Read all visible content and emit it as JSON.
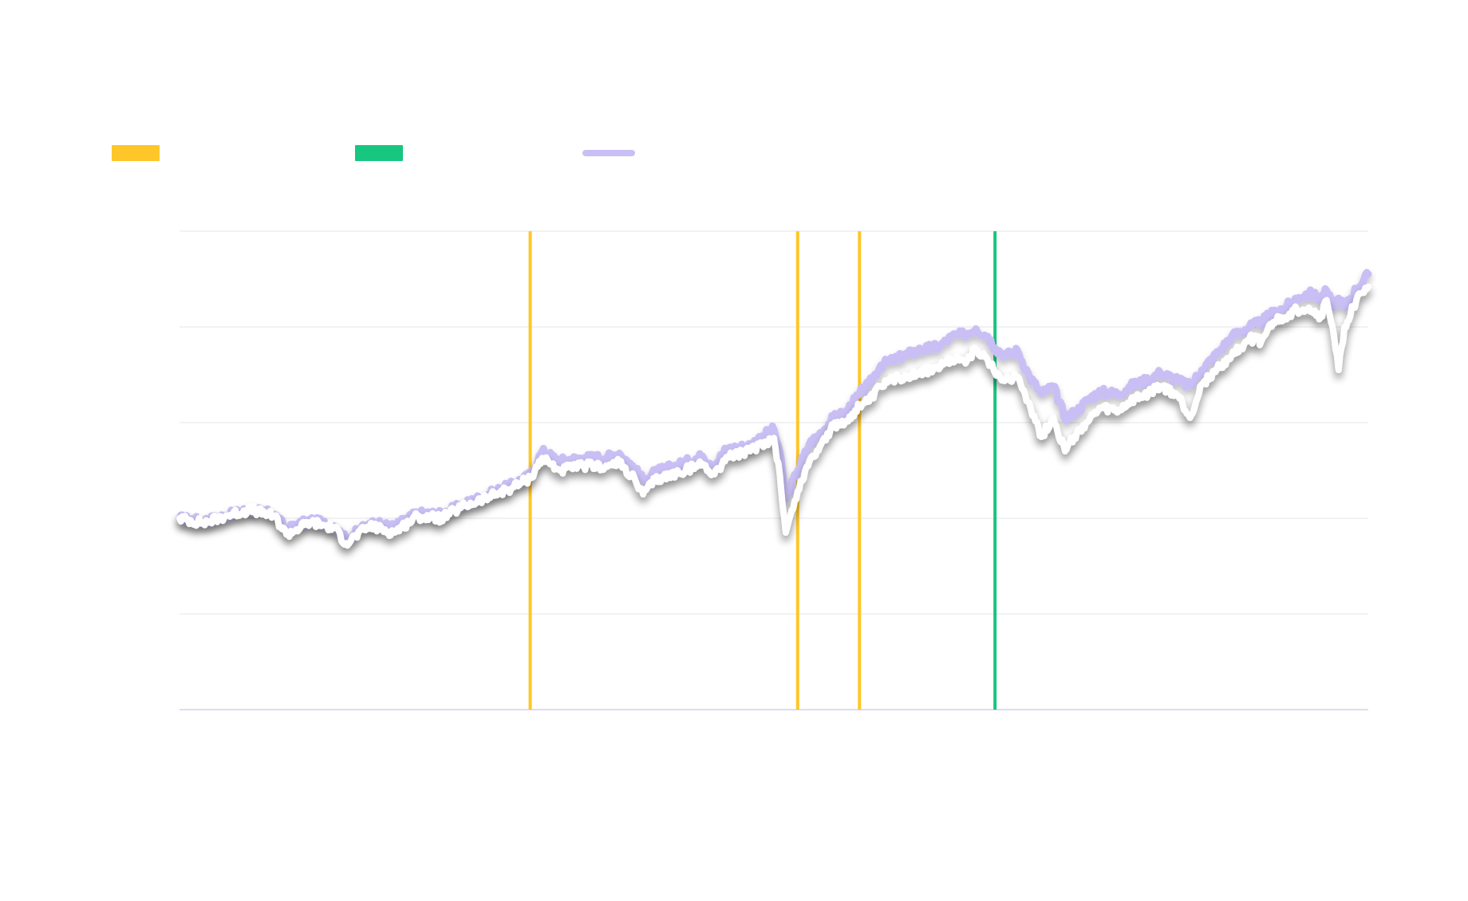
{
  "chart_data": {
    "type": "line",
    "title": "",
    "xlabel": "",
    "ylabel": "",
    "grid": true,
    "legend_position": "top-left",
    "legend": [
      {
        "key": "yellow",
        "label": "",
        "color": "#FFC629",
        "shape": "rect"
      },
      {
        "key": "green",
        "label": "",
        "color": "#17C67F",
        "shape": "rect"
      },
      {
        "key": "purple",
        "label": "",
        "color": "#C9BFF5",
        "shape": "line"
      }
    ],
    "x_range": [
      0,
      100
    ],
    "y_range": [
      0,
      5
    ],
    "gridlines_y": [
      0,
      1,
      2,
      3,
      4,
      5
    ],
    "vertical_markers": [
      {
        "x": 29.5,
        "color": "#FFC629"
      },
      {
        "x": 52.0,
        "color": "#FFC629"
      },
      {
        "x": 57.2,
        "color": "#FFC629"
      },
      {
        "x": 68.6,
        "color": "#17C67F"
      }
    ],
    "series": [
      {
        "color": "#C9BFF5",
        "points": [
          [
            0,
            2.0
          ],
          [
            2,
            1.97
          ],
          [
            4,
            2.03
          ],
          [
            6,
            2.09
          ],
          [
            8,
            2.04
          ],
          [
            9,
            1.88
          ],
          [
            11,
            1.98
          ],
          [
            13,
            1.92
          ],
          [
            14,
            1.78
          ],
          [
            16,
            1.95
          ],
          [
            18,
            1.91
          ],
          [
            20,
            2.05
          ],
          [
            22,
            2.04
          ],
          [
            24,
            2.15
          ],
          [
            26,
            2.25
          ],
          [
            28,
            2.35
          ],
          [
            29.5,
            2.45
          ],
          [
            30.5,
            2.7
          ],
          [
            32,
            2.6
          ],
          [
            34,
            2.63
          ],
          [
            36,
            2.64
          ],
          [
            37,
            2.68
          ],
          [
            38,
            2.56
          ],
          [
            39,
            2.4
          ],
          [
            40,
            2.48
          ],
          [
            42,
            2.56
          ],
          [
            44,
            2.65
          ],
          [
            45,
            2.56
          ],
          [
            46,
            2.72
          ],
          [
            48,
            2.76
          ],
          [
            49,
            2.86
          ],
          [
            50,
            2.93
          ],
          [
            50.5,
            2.7
          ],
          [
            51,
            2.2
          ],
          [
            52,
            2.5
          ],
          [
            53,
            2.78
          ],
          [
            54,
            2.9
          ],
          [
            55,
            3.05
          ],
          [
            56,
            3.1
          ],
          [
            57.2,
            3.3
          ],
          [
            58,
            3.4
          ],
          [
            59,
            3.6
          ],
          [
            60,
            3.65
          ],
          [
            62,
            3.75
          ],
          [
            64,
            3.8
          ],
          [
            65,
            3.9
          ],
          [
            66,
            3.92
          ],
          [
            67,
            3.98
          ],
          [
            68,
            3.9
          ],
          [
            68.6,
            3.78
          ],
          [
            69.5,
            3.7
          ],
          [
            70.5,
            3.75
          ],
          [
            71.5,
            3.48
          ],
          [
            72.5,
            3.3
          ],
          [
            73.5,
            3.38
          ],
          [
            74.5,
            3.05
          ],
          [
            75.5,
            3.12
          ],
          [
            76.5,
            3.25
          ],
          [
            77.5,
            3.32
          ],
          [
            79,
            3.3
          ],
          [
            80,
            3.38
          ],
          [
            81.5,
            3.45
          ],
          [
            82.5,
            3.52
          ],
          [
            84,
            3.44
          ],
          [
            85,
            3.38
          ],
          [
            86,
            3.55
          ],
          [
            87.5,
            3.75
          ],
          [
            88.5,
            3.9
          ],
          [
            90,
            4.0
          ],
          [
            91,
            4.05
          ],
          [
            92,
            4.15
          ],
          [
            93,
            4.2
          ],
          [
            94,
            4.3
          ],
          [
            95,
            4.35
          ],
          [
            96,
            4.3
          ],
          [
            96.5,
            4.38
          ],
          [
            97,
            4.22
          ],
          [
            97.5,
            4.3
          ],
          [
            98,
            4.2
          ],
          [
            99,
            4.4
          ],
          [
            100,
            4.55
          ]
        ]
      },
      {
        "color": "#FFFFFF",
        "points": [
          [
            0,
            2.0
          ],
          [
            2,
            1.95
          ],
          [
            4,
            2.03
          ],
          [
            6,
            2.09
          ],
          [
            8,
            2.02
          ],
          [
            9,
            1.83
          ],
          [
            11,
            1.96
          ],
          [
            13,
            1.9
          ],
          [
            14,
            1.74
          ],
          [
            16,
            1.92
          ],
          [
            18,
            1.85
          ],
          [
            20,
            2.02
          ],
          [
            22,
            2.0
          ],
          [
            24,
            2.13
          ],
          [
            26,
            2.22
          ],
          [
            28,
            2.32
          ],
          [
            29.5,
            2.42
          ],
          [
            30.5,
            2.63
          ],
          [
            32,
            2.5
          ],
          [
            34,
            2.55
          ],
          [
            36,
            2.54
          ],
          [
            37,
            2.58
          ],
          [
            38,
            2.45
          ],
          [
            39,
            2.25
          ],
          [
            40,
            2.4
          ],
          [
            42,
            2.48
          ],
          [
            44,
            2.57
          ],
          [
            45,
            2.46
          ],
          [
            46,
            2.64
          ],
          [
            48,
            2.7
          ],
          [
            49,
            2.78
          ],
          [
            50,
            2.84
          ],
          [
            50.5,
            2.45
          ],
          [
            51,
            1.85
          ],
          [
            52,
            2.28
          ],
          [
            53,
            2.6
          ],
          [
            54,
            2.78
          ],
          [
            55,
            2.96
          ],
          [
            56,
            3.0
          ],
          [
            57.2,
            3.18
          ],
          [
            58,
            3.22
          ],
          [
            59,
            3.38
          ],
          [
            60,
            3.45
          ],
          [
            62,
            3.52
          ],
          [
            64,
            3.58
          ],
          [
            65,
            3.66
          ],
          [
            66,
            3.65
          ],
          [
            67,
            3.75
          ],
          [
            68,
            3.65
          ],
          [
            68.6,
            3.52
          ],
          [
            69.5,
            3.45
          ],
          [
            70.5,
            3.48
          ],
          [
            71.5,
            3.2
          ],
          [
            72.5,
            2.85
          ],
          [
            73.5,
            3.05
          ],
          [
            74.5,
            2.7
          ],
          [
            75.5,
            2.9
          ],
          [
            76.5,
            3.02
          ],
          [
            77.5,
            3.15
          ],
          [
            79,
            3.12
          ],
          [
            80,
            3.22
          ],
          [
            81.5,
            3.3
          ],
          [
            82.5,
            3.38
          ],
          [
            84,
            3.28
          ],
          [
            85,
            3.05
          ],
          [
            86,
            3.4
          ],
          [
            87.5,
            3.58
          ],
          [
            88.5,
            3.7
          ],
          [
            90,
            3.88
          ],
          [
            91,
            3.85
          ],
          [
            92,
            4.05
          ],
          [
            93,
            4.1
          ],
          [
            94,
            4.18
          ],
          [
            95,
            4.2
          ],
          [
            96,
            4.1
          ],
          [
            96.5,
            4.28
          ],
          [
            97,
            4.0
          ],
          [
            97.5,
            3.55
          ],
          [
            98,
            4.0
          ],
          [
            99,
            4.28
          ],
          [
            100,
            4.42
          ]
        ]
      }
    ]
  }
}
